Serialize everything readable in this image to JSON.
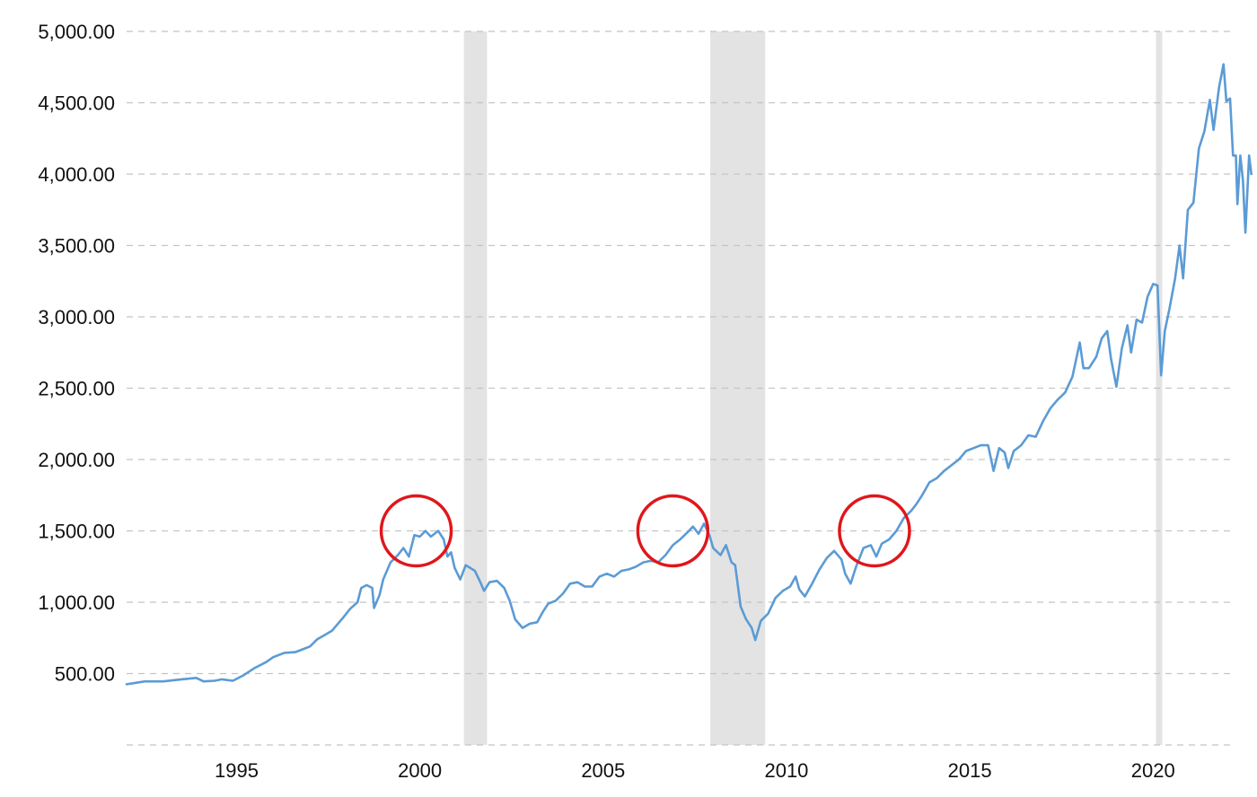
{
  "chart_data": {
    "type": "line",
    "title": "",
    "xlabel": "",
    "ylabel": "",
    "xlim": [
      1992.0,
      2022.1
    ],
    "ylim": [
      0,
      5000
    ],
    "grid": true,
    "grid_style": "dashed-horizontal",
    "line_color": "#5b9bd5",
    "recession_color": "#e3e3e3",
    "highlight_color": "#e0161b",
    "y_ticks": [
      {
        "value": 0,
        "label": ""
      },
      {
        "value": 500,
        "label": "500.00"
      },
      {
        "value": 1000,
        "label": "1,000.00"
      },
      {
        "value": 1500,
        "label": "1,500.00"
      },
      {
        "value": 2000,
        "label": "2,000.00"
      },
      {
        "value": 2500,
        "label": "2,500.00"
      },
      {
        "value": 3000,
        "label": "3,000.00"
      },
      {
        "value": 3500,
        "label": "3,500.00"
      },
      {
        "value": 4000,
        "label": "4,000.00"
      },
      {
        "value": 4500,
        "label": "4,500.00"
      },
      {
        "value": 5000,
        "label": "5,000.00"
      }
    ],
    "x_ticks": [
      {
        "value": 1995,
        "label": "1995"
      },
      {
        "value": 2000,
        "label": "2000"
      },
      {
        "value": 2005,
        "label": "2005"
      },
      {
        "value": 2010,
        "label": "2010"
      },
      {
        "value": 2015,
        "label": "2015"
      },
      {
        "value": 2020,
        "label": "2020"
      }
    ],
    "recessions": [
      {
        "start": 2001.2,
        "end": 2001.83
      },
      {
        "start": 2007.92,
        "end": 2009.42
      },
      {
        "start": 2020.08,
        "end": 2020.25
      }
    ],
    "highlights": [
      {
        "x": 1999.9,
        "y": 1500
      },
      {
        "x": 2006.9,
        "y": 1500
      },
      {
        "x": 2012.4,
        "y": 1500
      }
    ],
    "series": [
      {
        "values": [
          [
            1992.0,
            425
          ],
          [
            1992.5,
            445
          ],
          [
            1993.0,
            445
          ],
          [
            1993.5,
            460
          ],
          [
            1993.9,
            470
          ],
          [
            1994.1,
            445
          ],
          [
            1994.4,
            450
          ],
          [
            1994.6,
            460
          ],
          [
            1994.9,
            450
          ],
          [
            1995.2,
            490
          ],
          [
            1995.5,
            540
          ],
          [
            1995.8,
            580
          ],
          [
            1996.0,
            615
          ],
          [
            1996.3,
            645
          ],
          [
            1996.6,
            650
          ],
          [
            1996.8,
            670
          ],
          [
            1997.0,
            690
          ],
          [
            1997.2,
            740
          ],
          [
            1997.4,
            770
          ],
          [
            1997.6,
            800
          ],
          [
            1997.9,
            890
          ],
          [
            1998.1,
            955
          ],
          [
            1998.3,
            1000
          ],
          [
            1998.4,
            1100
          ],
          [
            1998.55,
            1120
          ],
          [
            1998.7,
            1100
          ],
          [
            1998.75,
            960
          ],
          [
            1998.9,
            1050
          ],
          [
            1999.0,
            1160
          ],
          [
            1999.2,
            1280
          ],
          [
            1999.4,
            1330
          ],
          [
            1999.55,
            1380
          ],
          [
            1999.7,
            1320
          ],
          [
            1999.85,
            1470
          ],
          [
            2000.0,
            1460
          ],
          [
            2000.15,
            1500
          ],
          [
            2000.3,
            1460
          ],
          [
            2000.5,
            1500
          ],
          [
            2000.65,
            1440
          ],
          [
            2000.75,
            1320
          ],
          [
            2000.85,
            1350
          ],
          [
            2000.95,
            1240
          ],
          [
            2001.1,
            1160
          ],
          [
            2001.25,
            1260
          ],
          [
            2001.5,
            1220
          ],
          [
            2001.65,
            1140
          ],
          [
            2001.75,
            1080
          ],
          [
            2001.9,
            1140
          ],
          [
            2002.1,
            1150
          ],
          [
            2002.3,
            1100
          ],
          [
            2002.45,
            1010
          ],
          [
            2002.6,
            880
          ],
          [
            2002.8,
            820
          ],
          [
            2003.0,
            850
          ],
          [
            2003.2,
            860
          ],
          [
            2003.35,
            930
          ],
          [
            2003.5,
            990
          ],
          [
            2003.7,
            1010
          ],
          [
            2003.9,
            1060
          ],
          [
            2004.1,
            1130
          ],
          [
            2004.3,
            1140
          ],
          [
            2004.5,
            1110
          ],
          [
            2004.7,
            1110
          ],
          [
            2004.9,
            1180
          ],
          [
            2005.1,
            1200
          ],
          [
            2005.3,
            1180
          ],
          [
            2005.5,
            1220
          ],
          [
            2005.7,
            1230
          ],
          [
            2005.9,
            1250
          ],
          [
            2006.1,
            1280
          ],
          [
            2006.3,
            1290
          ],
          [
            2006.5,
            1280
          ],
          [
            2006.7,
            1330
          ],
          [
            2006.9,
            1400
          ],
          [
            2007.1,
            1440
          ],
          [
            2007.3,
            1490
          ],
          [
            2007.45,
            1530
          ],
          [
            2007.6,
            1480
          ],
          [
            2007.75,
            1550
          ],
          [
            2007.9,
            1470
          ],
          [
            2008.0,
            1380
          ],
          [
            2008.2,
            1330
          ],
          [
            2008.35,
            1400
          ],
          [
            2008.5,
            1280
          ],
          [
            2008.6,
            1260
          ],
          [
            2008.75,
            970
          ],
          [
            2008.9,
            880
          ],
          [
            2009.05,
            820
          ],
          [
            2009.15,
            735
          ],
          [
            2009.3,
            870
          ],
          [
            2009.5,
            920
          ],
          [
            2009.7,
            1030
          ],
          [
            2009.9,
            1080
          ],
          [
            2010.1,
            1110
          ],
          [
            2010.25,
            1180
          ],
          [
            2010.35,
            1090
          ],
          [
            2010.5,
            1040
          ],
          [
            2010.7,
            1130
          ],
          [
            2010.9,
            1230
          ],
          [
            2011.1,
            1310
          ],
          [
            2011.3,
            1360
          ],
          [
            2011.5,
            1300
          ],
          [
            2011.6,
            1200
          ],
          [
            2011.75,
            1130
          ],
          [
            2011.9,
            1250
          ],
          [
            2012.1,
            1380
          ],
          [
            2012.3,
            1400
          ],
          [
            2012.45,
            1320
          ],
          [
            2012.6,
            1410
          ],
          [
            2012.8,
            1440
          ],
          [
            2013.0,
            1500
          ],
          [
            2013.2,
            1590
          ],
          [
            2013.4,
            1640
          ],
          [
            2013.55,
            1690
          ],
          [
            2013.7,
            1750
          ],
          [
            2013.9,
            1840
          ],
          [
            2014.1,
            1870
          ],
          [
            2014.3,
            1920
          ],
          [
            2014.5,
            1960
          ],
          [
            2014.7,
            2000
          ],
          [
            2014.9,
            2060
          ],
          [
            2015.1,
            2080
          ],
          [
            2015.3,
            2100
          ],
          [
            2015.5,
            2100
          ],
          [
            2015.65,
            1920
          ],
          [
            2015.8,
            2080
          ],
          [
            2015.95,
            2050
          ],
          [
            2016.05,
            1940
          ],
          [
            2016.2,
            2060
          ],
          [
            2016.4,
            2100
          ],
          [
            2016.6,
            2170
          ],
          [
            2016.8,
            2160
          ],
          [
            2017.0,
            2270
          ],
          [
            2017.2,
            2360
          ],
          [
            2017.4,
            2420
          ],
          [
            2017.6,
            2470
          ],
          [
            2017.8,
            2580
          ],
          [
            2018.0,
            2820
          ],
          [
            2018.1,
            2640
          ],
          [
            2018.25,
            2640
          ],
          [
            2018.45,
            2720
          ],
          [
            2018.6,
            2850
          ],
          [
            2018.75,
            2900
          ],
          [
            2018.85,
            2710
          ],
          [
            2019.0,
            2510
          ],
          [
            2019.15,
            2780
          ],
          [
            2019.3,
            2940
          ],
          [
            2019.4,
            2750
          ],
          [
            2019.55,
            2980
          ],
          [
            2019.7,
            2960
          ],
          [
            2019.85,
            3140
          ],
          [
            2020.0,
            3230
          ],
          [
            2020.12,
            3220
          ],
          [
            2020.22,
            2590
          ],
          [
            2020.32,
            2900
          ],
          [
            2020.45,
            3060
          ],
          [
            2020.6,
            3270
          ],
          [
            2020.72,
            3500
          ],
          [
            2020.82,
            3270
          ],
          [
            2020.95,
            3750
          ],
          [
            2021.1,
            3800
          ],
          [
            2021.25,
            4180
          ],
          [
            2021.4,
            4300
          ],
          [
            2021.55,
            4520
          ],
          [
            2021.65,
            4310
          ],
          [
            2021.8,
            4610
          ],
          [
            2021.92,
            4770
          ],
          [
            2022.0,
            4510
          ],
          [
            2022.1,
            4530
          ],
          [
            2022.18,
            4130
          ],
          [
            2022.26,
            4130
          ],
          [
            2022.3,
            3790
          ],
          [
            2022.38,
            4130
          ],
          [
            2022.45,
            3960
          ],
          [
            2022.52,
            3590
          ],
          [
            2022.62,
            4130
          ],
          [
            2022.68,
            4000
          ]
        ]
      }
    ]
  }
}
